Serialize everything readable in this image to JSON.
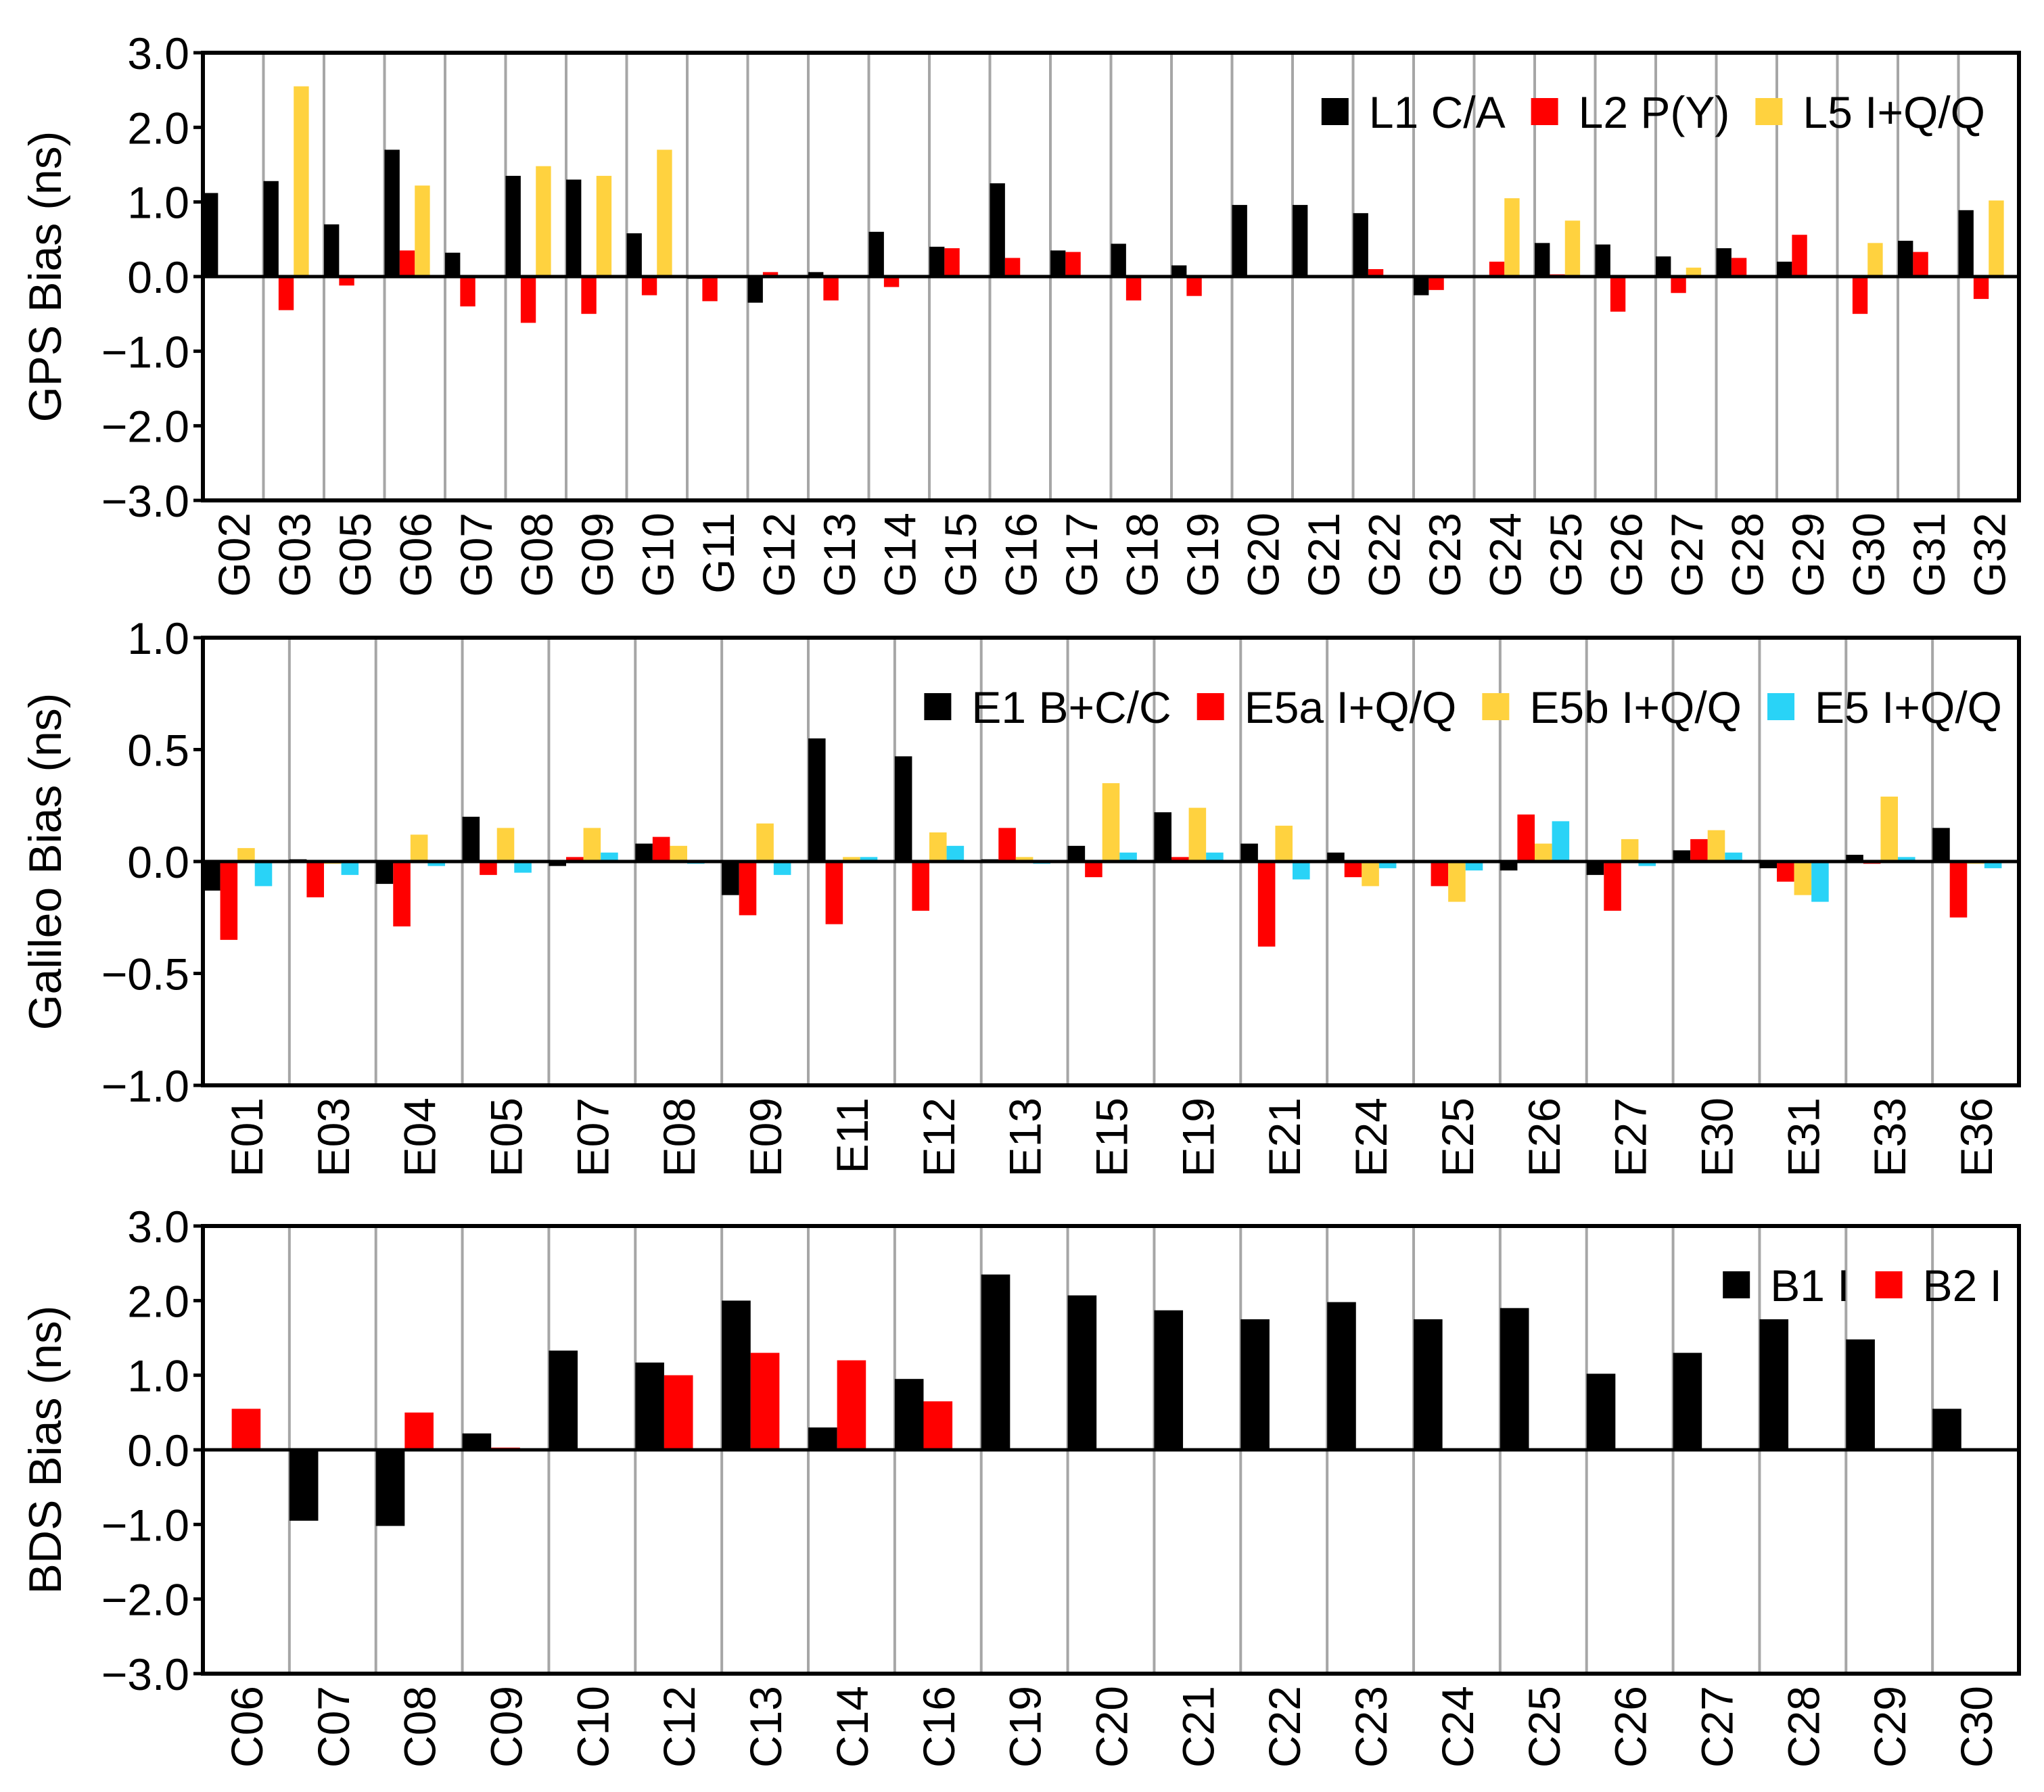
{
  "chart_data": [
    {
      "type": "bar",
      "ylabel": "GPS Bias (ns)",
      "ylim": [
        -3.0,
        3.0
      ],
      "yticks": [
        "3.0",
        "2.0",
        "1.0",
        "0.0",
        "−1.0",
        "−2.0",
        "−3.0"
      ],
      "ytick_values": [
        3,
        2,
        1,
        0,
        -1,
        -2,
        -3
      ],
      "legend_position": "top-right",
      "categories": [
        "G02",
        "G03",
        "G05",
        "G06",
        "G07",
        "G08",
        "G09",
        "G10",
        "G11",
        "G12",
        "G13",
        "G14",
        "G15",
        "G16",
        "G17",
        "G18",
        "G19",
        "G20",
        "G21",
        "G22",
        "G23",
        "G24",
        "G25",
        "G26",
        "G27",
        "G28",
        "G29",
        "G30",
        "G31",
        "G32"
      ],
      "series": [
        {
          "name": "L1 C/A",
          "color": "#000000",
          "values": [
            1.12,
            1.28,
            0.7,
            1.7,
            0.32,
            1.35,
            1.3,
            0.58,
            -0.03,
            -0.35,
            0.06,
            0.6,
            0.4,
            1.25,
            0.35,
            0.44,
            0.15,
            0.96,
            0.96,
            0.85,
            -0.25,
            0.0,
            0.45,
            0.43,
            0.27,
            0.38,
            0.2,
            0.0,
            0.48,
            0.89
          ]
        },
        {
          "name": "L2 P(Y)",
          "color": "#ff0000",
          "values": [
            0.02,
            -0.45,
            -0.12,
            0.35,
            -0.4,
            -0.62,
            -0.5,
            -0.25,
            -0.33,
            0.06,
            -0.32,
            -0.14,
            0.38,
            0.25,
            0.33,
            -0.32,
            -0.26,
            0.02,
            0.02,
            0.1,
            -0.18,
            0.2,
            0.03,
            -0.47,
            -0.22,
            0.25,
            0.56,
            -0.5,
            0.33,
            -0.3
          ]
        },
        {
          "name": "L5 I+Q/Q",
          "color": "#ffd23f",
          "values": [
            null,
            2.55,
            null,
            1.22,
            null,
            1.48,
            1.35,
            1.7,
            null,
            null,
            null,
            null,
            null,
            null,
            null,
            null,
            null,
            null,
            null,
            null,
            null,
            1.05,
            0.75,
            null,
            0.12,
            null,
            null,
            0.45,
            null,
            1.02
          ]
        }
      ]
    },
    {
      "type": "bar",
      "ylabel": "Galileo Bias (ns)",
      "ylim": [
        -1.0,
        1.0
      ],
      "yticks": [
        "1.0",
        "0.5",
        "0.0",
        "−0.5",
        "−1.0"
      ],
      "ytick_values": [
        1,
        0.5,
        0,
        -0.5,
        -1
      ],
      "legend_position": "top-right",
      "categories": [
        "E01",
        "E03",
        "E04",
        "E05",
        "E07",
        "E08",
        "E09",
        "E11",
        "E12",
        "E13",
        "E15",
        "E19",
        "E21",
        "E24",
        "E25",
        "E26",
        "E27",
        "E30",
        "E31",
        "E33",
        "E36"
      ],
      "series": [
        {
          "name": "E1 B+C/C",
          "color": "#000000",
          "values": [
            -0.13,
            0.01,
            -0.1,
            0.2,
            -0.02,
            0.08,
            -0.15,
            0.55,
            0.47,
            0.01,
            0.07,
            0.22,
            0.08,
            0.04,
            0.0,
            -0.04,
            -0.06,
            0.05,
            -0.03,
            0.03,
            0.15
          ]
        },
        {
          "name": "E5a I+Q/Q",
          "color": "#ff0000",
          "values": [
            -0.35,
            -0.16,
            -0.29,
            -0.06,
            0.02,
            0.11,
            -0.24,
            -0.28,
            -0.22,
            0.15,
            -0.07,
            0.02,
            -0.38,
            -0.07,
            -0.11,
            0.21,
            -0.22,
            0.1,
            -0.09,
            -0.01,
            -0.25
          ]
        },
        {
          "name": "E5b I+Q/Q",
          "color": "#ffd23f",
          "values": [
            0.06,
            -0.01,
            0.12,
            0.15,
            0.15,
            0.07,
            0.17,
            0.02,
            0.13,
            0.02,
            0.35,
            0.24,
            0.16,
            -0.11,
            -0.18,
            0.08,
            0.1,
            0.14,
            -0.15,
            0.29,
            -0.01
          ]
        },
        {
          "name": "E5 I+Q/Q",
          "color": "#29d3f7",
          "values": [
            -0.11,
            -0.06,
            -0.02,
            -0.05,
            0.04,
            -0.01,
            -0.06,
            0.02,
            0.07,
            -0.01,
            0.04,
            0.04,
            -0.08,
            -0.03,
            -0.04,
            0.18,
            -0.02,
            0.04,
            -0.18,
            0.02,
            -0.03
          ]
        }
      ]
    },
    {
      "type": "bar",
      "ylabel": "BDS Bias (ns)",
      "ylim": [
        -3.0,
        3.0
      ],
      "yticks": [
        "3.0",
        "2.0",
        "1.0",
        "0.0",
        "−1.0",
        "−2.0",
        "−3.0"
      ],
      "ytick_values": [
        3,
        2,
        1,
        0,
        -1,
        -2,
        -3
      ],
      "legend_position": "top-right",
      "categories": [
        "C06",
        "C07",
        "C08",
        "C09",
        "C10",
        "C12",
        "C13",
        "C14",
        "C16",
        "C19",
        "C20",
        "C21",
        "C22",
        "C23",
        "C24",
        "C25",
        "C26",
        "C27",
        "C28",
        "C29",
        "C30"
      ],
      "series": [
        {
          "name": "B1 I",
          "color": "#000000",
          "values": [
            null,
            -0.95,
            -1.02,
            0.22,
            1.33,
            1.17,
            2.0,
            0.3,
            0.95,
            2.35,
            2.07,
            1.87,
            1.75,
            1.98,
            1.75,
            1.9,
            1.02,
            1.3,
            1.75,
            1.48,
            0.55
          ]
        },
        {
          "name": "B2 I",
          "color": "#ff0000",
          "values": [
            0.55,
            null,
            0.5,
            0.03,
            null,
            1.0,
            1.3,
            1.2,
            0.65,
            null,
            null,
            null,
            null,
            null,
            null,
            null,
            null,
            null,
            null,
            null,
            null
          ]
        }
      ]
    }
  ]
}
